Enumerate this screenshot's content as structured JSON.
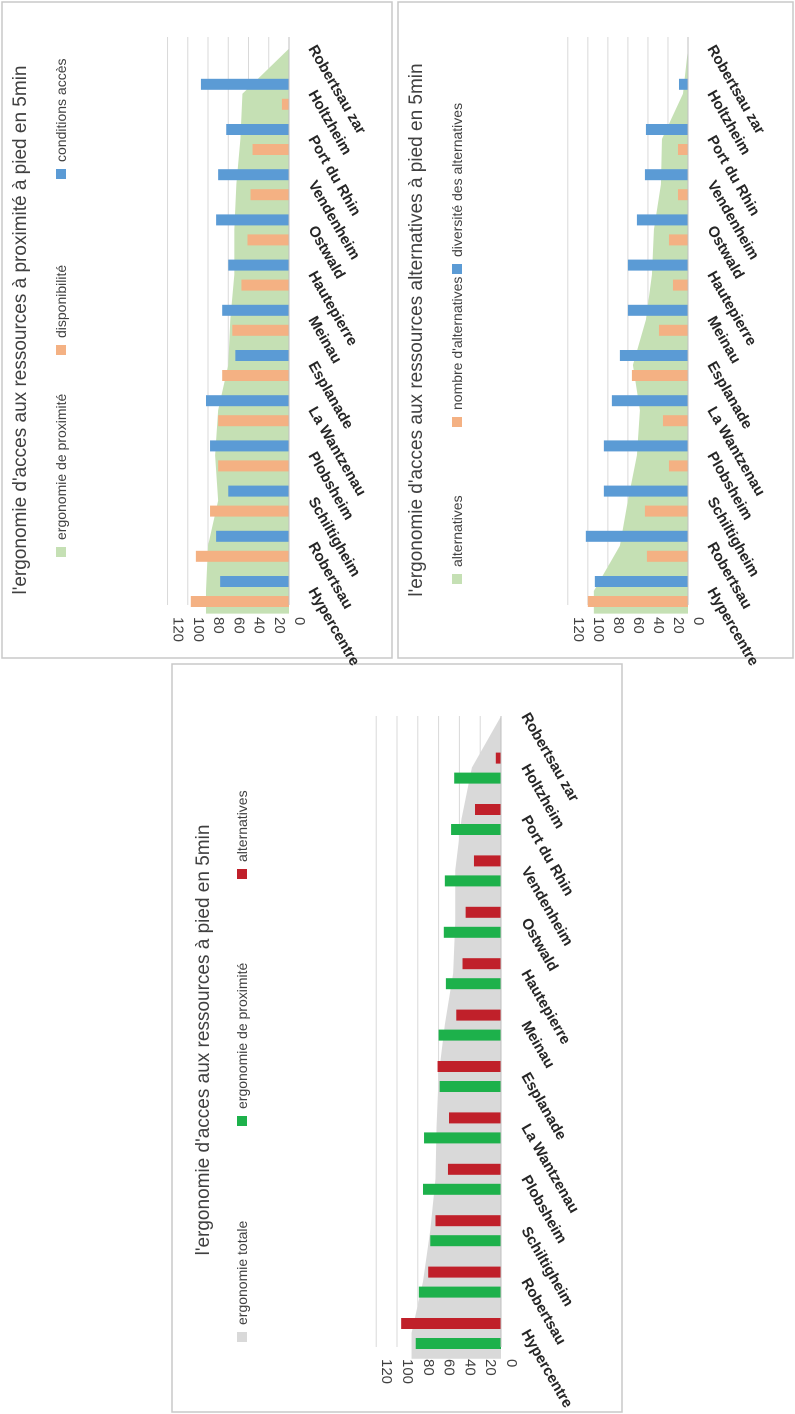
{
  "colors": {
    "area_gray": "#d9d9d9",
    "area_green": "#c5e0b4",
    "bar_green": "#1db14b",
    "bar_red": "#c0202a",
    "bar_orange": "#f4b183",
    "bar_blue": "#5b9bd5"
  },
  "chart_data": [
    {
      "type": "bar",
      "title": "l'ergonomie d'acces aux ressources à pied en 5min",
      "categories": [
        "Hypercentre",
        "Robertsau",
        "Schiltigheim",
        "Plobsheim",
        "La Wantzenau",
        "Esplanade",
        "Meinau",
        "Hautepierre",
        "Ostwald",
        "Vendenheim",
        "Port du Rhin",
        "Holtzheim",
        "Robertsau zar"
      ],
      "ylim": [
        0,
        120
      ],
      "yticks": [
        "0",
        "20",
        "40",
        "60",
        "80",
        "100",
        "120"
      ],
      "area": {
        "name": "ergonomie totale",
        "values": [
          86,
          75,
          68,
          63,
          62,
          60,
          54,
          46,
          44,
          44,
          38,
          28,
          0
        ]
      },
      "series": [
        {
          "name": "ergonomie de proximité",
          "values": [
            82,
            79,
            68,
            75,
            74,
            59,
            60,
            53,
            55,
            54,
            48,
            45,
            0
          ]
        },
        {
          "name": "alternatives",
          "values": [
            96,
            70,
            63,
            51,
            50,
            61,
            43,
            37,
            34,
            26,
            25,
            5,
            0
          ]
        }
      ]
    },
    {
      "type": "bar",
      "title": "l'ergonomie d'acces aux ressources à proximité à pied en 5min",
      "categories": [
        "Hypercentre",
        "Robertsau",
        "Schiltigheim",
        "Plobsheim",
        "La Wantzenau",
        "Esplanade",
        "Meinau",
        "Hautepierre",
        "Ostwald",
        "Vendenheim",
        "Port du Rhin",
        "Holtzheim",
        "Robertsau zar"
      ],
      "ylim": [
        0,
        120
      ],
      "yticks": [
        "0",
        "20",
        "40",
        "60",
        "80",
        "100",
        "120"
      ],
      "area": {
        "name": "ergonomie de proximité",
        "values": [
          82,
          80,
          70,
          73,
          70,
          60,
          58,
          54,
          54,
          52,
          48,
          46,
          0
        ]
      },
      "series": [
        {
          "name": "disponibilité",
          "values": [
            97,
            92,
            78,
            70,
            70,
            66,
            56,
            47,
            41,
            38,
            36,
            7,
            0
          ]
        },
        {
          "name": "conditions accès",
          "values": [
            68,
            72,
            60,
            78,
            82,
            53,
            66,
            60,
            72,
            70,
            62,
            87,
            0
          ]
        }
      ]
    },
    {
      "type": "bar",
      "title": "l'ergonomie d'acces aux ressources alternatives à pied en 5min",
      "categories": [
        "Hypercentre",
        "Robertsau",
        "Schiltigheim",
        "Plobsheim",
        "La Wantzenau",
        "Esplanade",
        "Meinau",
        "Hautepierre",
        "Ostwald",
        "Vendenheim",
        "Port du Rhin",
        "Holtzheim",
        "Robertsau zar"
      ],
      "ylim": [
        0,
        120
      ],
      "yticks": [
        "0",
        "20",
        "40",
        "60",
        "80",
        "100",
        "120"
      ],
      "area": {
        "name": "alternatives",
        "values": [
          94,
          68,
          60,
          51,
          48,
          55,
          42,
          36,
          34,
          27,
          26,
          5,
          0
        ]
      },
      "series": [
        {
          "name": "nombre d'alternatives",
          "values": [
            100,
            41,
            43,
            19,
            25,
            56,
            29,
            15,
            19,
            10,
            10,
            0,
            0
          ]
        },
        {
          "name": "diversité des alternatives",
          "values": [
            93,
            102,
            84,
            84,
            76,
            68,
            60,
            60,
            51,
            43,
            42,
            9,
            0
          ]
        }
      ]
    }
  ]
}
